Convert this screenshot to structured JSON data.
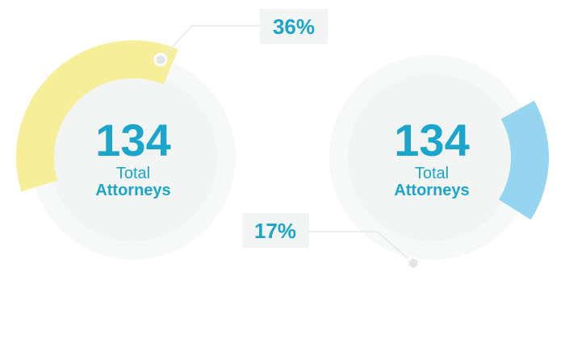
{
  "chart_data": [
    {
      "type": "pie",
      "center_value": "134",
      "center_label_line1": "Total",
      "center_label_line2": "Attorneys",
      "segment": {
        "value": 36,
        "label": "36%",
        "color": "#f7ee99"
      },
      "track_color": "#f7f8f8",
      "inner_color": "#f3f4f4",
      "callout_position": "top-right"
    },
    {
      "type": "pie",
      "center_value": "134",
      "center_label_line1": "Total",
      "center_label_line2": "Attorneys",
      "segment": {
        "value": 17,
        "label": "17%",
        "color": "#96d5ef"
      },
      "track_color": "#f7f8f8",
      "inner_color": "#f3f4f4",
      "callout_position": "bottom-left"
    }
  ],
  "colors": {
    "accent_text": "#1aa6cc",
    "callout_box": "#f3f4f4",
    "leader_line": "#e6e8e8",
    "dot_fill": "#e3e5e6",
    "dot_stroke": "#ffffff"
  }
}
